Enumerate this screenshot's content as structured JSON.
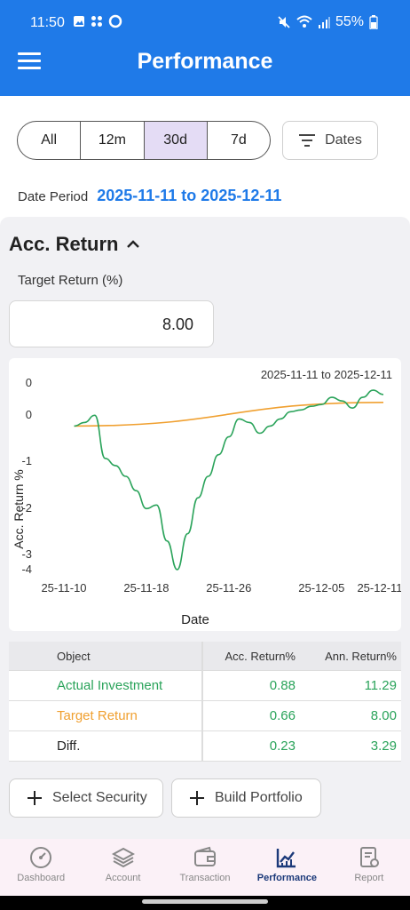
{
  "status": {
    "time": "11:50",
    "battery": "55%"
  },
  "appbar": {
    "title": "Performance"
  },
  "range_tabs": [
    {
      "label": "All",
      "active": false
    },
    {
      "label": "12m",
      "active": false
    },
    {
      "label": "30d",
      "active": true
    },
    {
      "label": "7d",
      "active": false
    }
  ],
  "dates_button": "Dates",
  "period": {
    "label": "Date Period",
    "value": "2025-11-11 to 2025-12-11"
  },
  "acc_return": {
    "title": "Acc. Return"
  },
  "target": {
    "label": "Target Return (%)",
    "value": "8.00"
  },
  "chart_data": {
    "type": "line",
    "title": "2025-11-11 to 2025-12-11",
    "xlabel": "Date",
    "ylabel": "Acc. Return %",
    "x_ticks": [
      "25-11-10",
      "25-11-18",
      "25-11-26",
      "25-12-05",
      "25-12-11"
    ],
    "y_ticks": [
      "0",
      "0",
      "-1",
      "-2",
      "-3",
      "-4"
    ],
    "series": [
      {
        "name": "Actual Investment",
        "color": "#2aa35a",
        "x": [
          "2025-11-11",
          "2025-11-12",
          "2025-11-13",
          "2025-11-14",
          "2025-11-15",
          "2025-11-16",
          "2025-11-17",
          "2025-11-18",
          "2025-11-19",
          "2025-11-20",
          "2025-11-21",
          "2025-11-22",
          "2025-11-23",
          "2025-11-24",
          "2025-11-25",
          "2025-11-26",
          "2025-11-27",
          "2025-11-28",
          "2025-11-29",
          "2025-11-30",
          "2025-12-01",
          "2025-12-02",
          "2025-12-03",
          "2025-12-04",
          "2025-12-05",
          "2025-12-06",
          "2025-12-07",
          "2025-12-08",
          "2025-12-09",
          "2025-12-10",
          "2025-12-11"
        ],
        "values": [
          0.0,
          0.1,
          0.3,
          -0.9,
          -1.1,
          -1.4,
          -1.8,
          -2.3,
          -2.2,
          -3.2,
          -4.0,
          -3.0,
          -2.0,
          -1.4,
          -0.8,
          -0.3,
          0.2,
          0.1,
          -0.2,
          0.0,
          0.2,
          0.4,
          0.45,
          0.55,
          0.6,
          0.8,
          0.7,
          0.5,
          0.8,
          1.0,
          0.88
        ]
      },
      {
        "name": "Target Return",
        "color": "#f0a030",
        "x": [
          "2025-11-11",
          "2025-12-11"
        ],
        "values": [
          0.0,
          0.66
        ]
      }
    ]
  },
  "table": {
    "headers": [
      "Object",
      "Acc. Return%",
      "Ann. Return%"
    ],
    "rows": [
      {
        "name": "Actual Investment",
        "acc": "0.88",
        "ann": "11.29",
        "name_color": "#2aa35a",
        "val_color": "#2aa35a"
      },
      {
        "name": "Target Return",
        "acc": "0.66",
        "ann": "8.00",
        "name_color": "#f0a030",
        "val_color": "#2aa35a"
      },
      {
        "name": "Diff.",
        "acc": "0.23",
        "ann": "3.29",
        "name_color": "#222222",
        "val_color": "#2aa35a"
      }
    ]
  },
  "buttons": {
    "select_security": "Select Security",
    "build_portfolio": "Build Portfolio"
  },
  "nav": [
    {
      "label": "Dashboard",
      "icon": "gauge-icon",
      "active": false
    },
    {
      "label": "Account",
      "icon": "layers-icon",
      "active": false
    },
    {
      "label": "Transaction",
      "icon": "wallet-icon",
      "active": false
    },
    {
      "label": "Performance",
      "icon": "chart-icon",
      "active": true
    },
    {
      "label": "Report",
      "icon": "report-icon",
      "active": false
    }
  ]
}
